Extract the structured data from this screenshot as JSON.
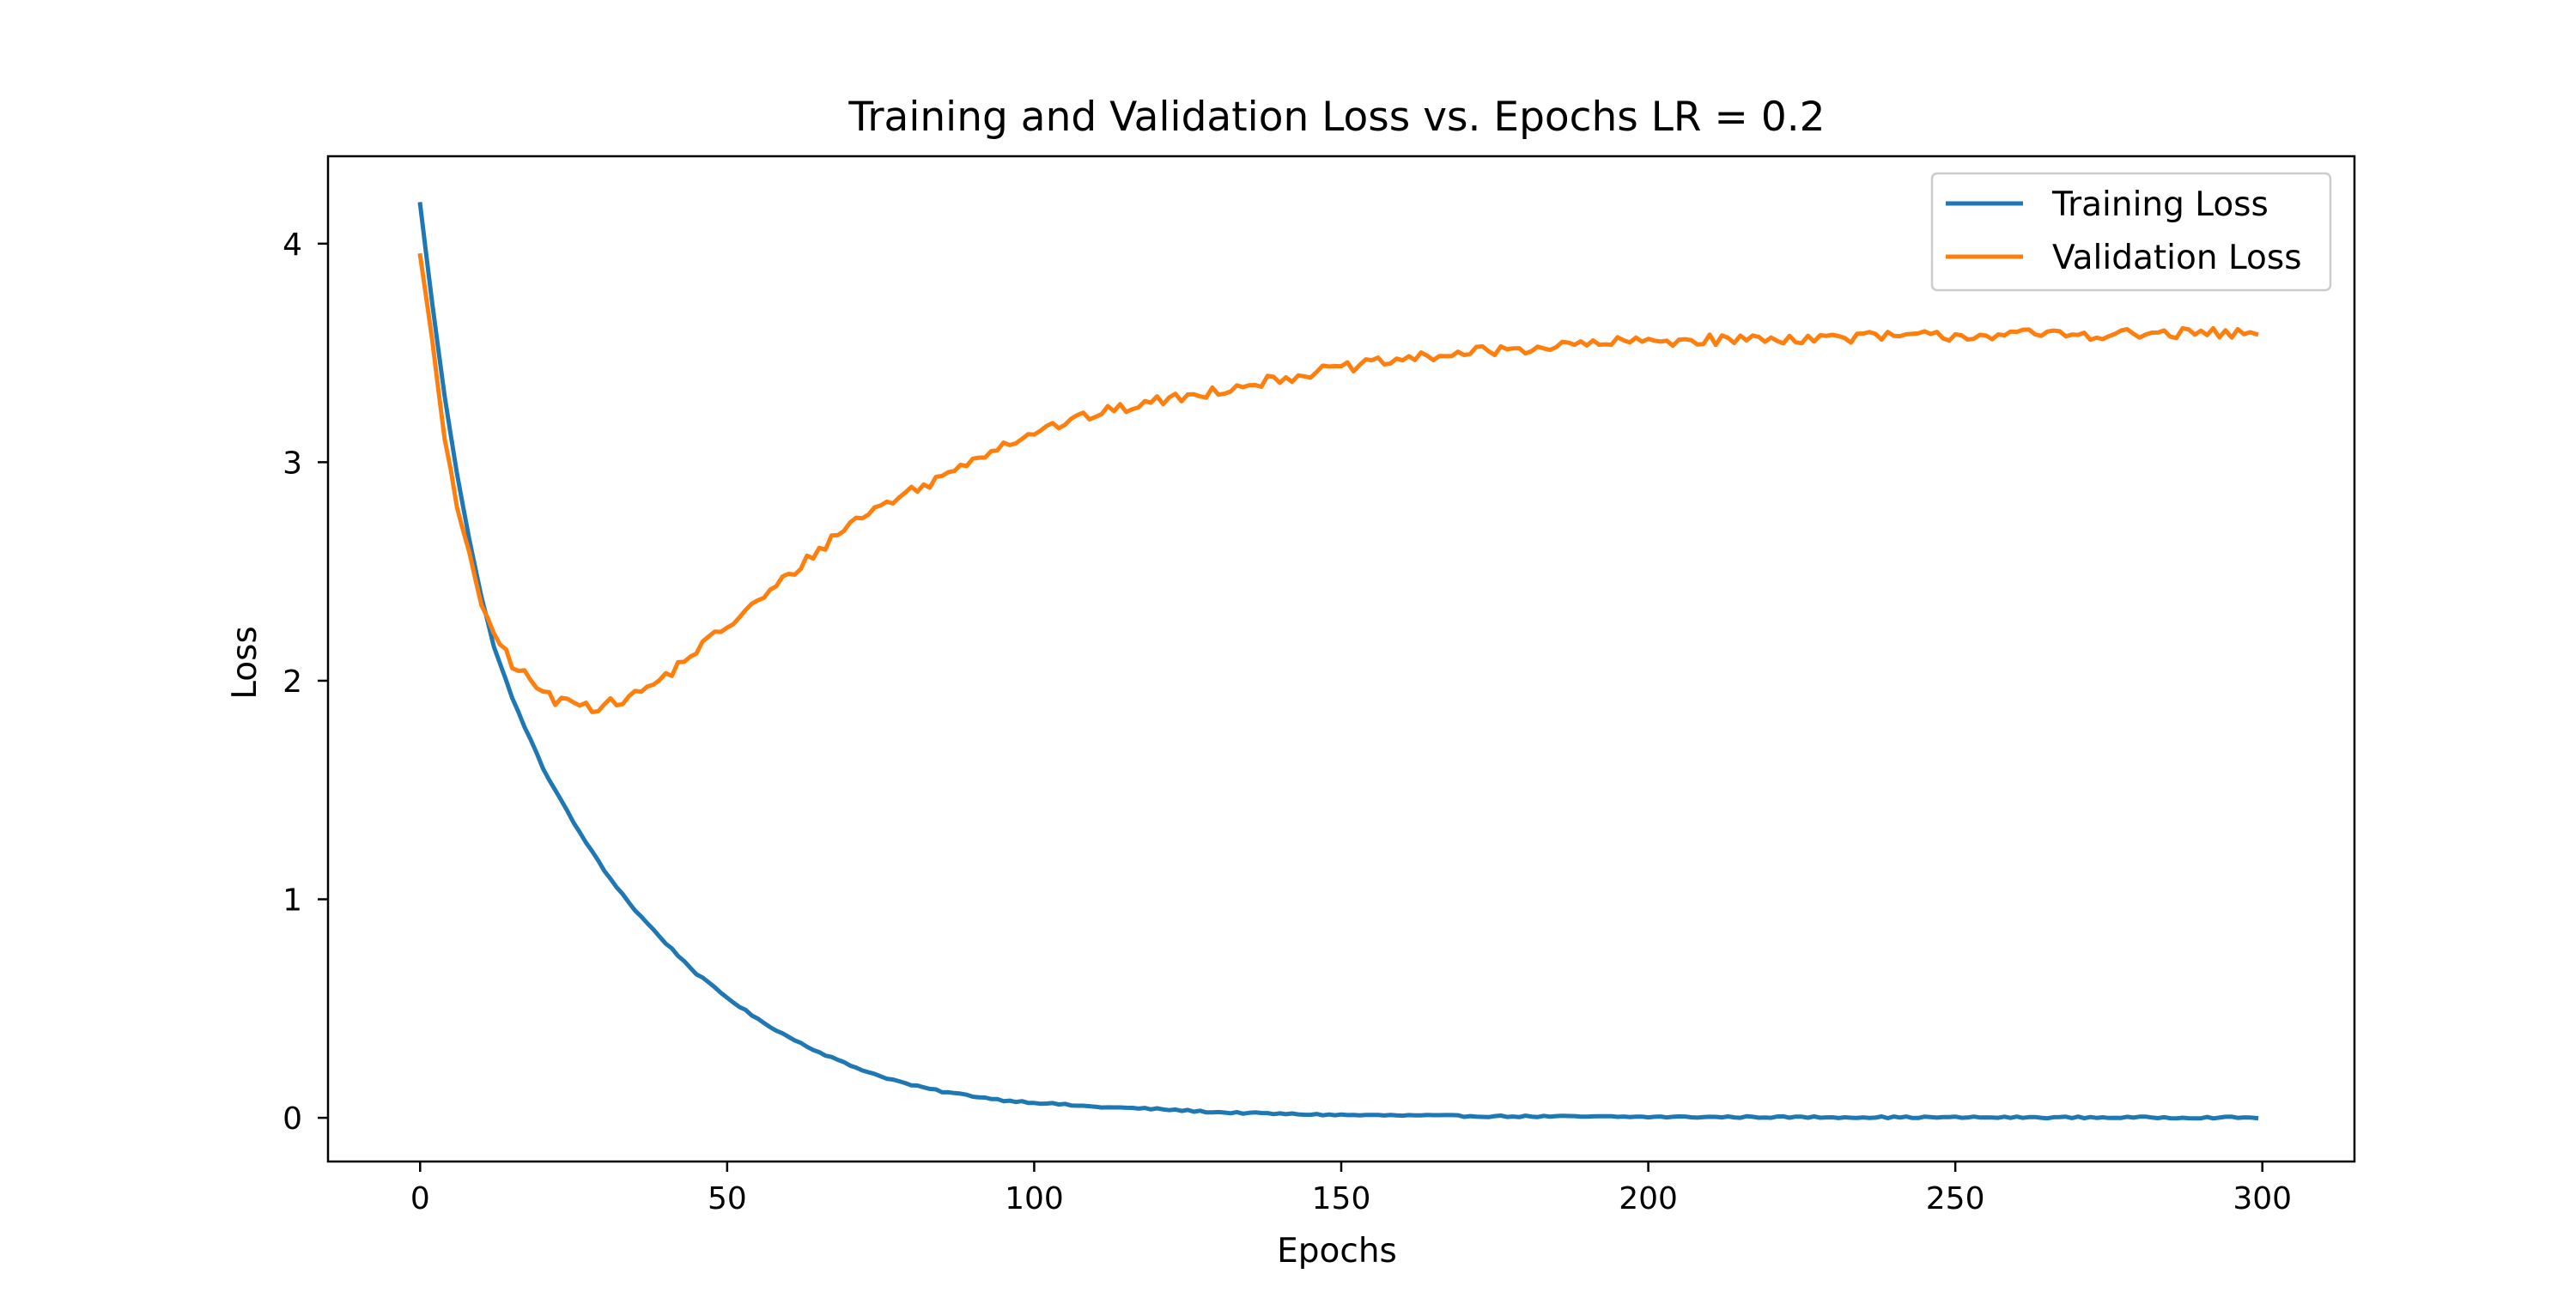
{
  "chart_data": {
    "type": "line",
    "title": "Training and Validation Loss vs. Epochs LR = 0.2",
    "xlabel": "Epochs",
    "ylabel": "Loss",
    "xlim": [
      -15,
      315
    ],
    "ylim": [
      -0.2,
      4.4
    ],
    "xticks": [
      0,
      50,
      100,
      150,
      200,
      250,
      300
    ],
    "yticks": [
      0,
      1,
      2,
      3,
      4
    ],
    "grid": false,
    "legend_position": "top-right",
    "x": {
      "start": 0,
      "end": 299,
      "step": 1
    },
    "series": [
      {
        "name": "Training Loss",
        "color": "#1f77b4",
        "keypoints": [
          [
            0,
            4.18
          ],
          [
            2,
            3.72
          ],
          [
            4,
            3.3
          ],
          [
            6,
            2.95
          ],
          [
            8,
            2.65
          ],
          [
            10,
            2.38
          ],
          [
            12,
            2.16
          ],
          [
            15,
            1.92
          ],
          [
            20,
            1.6
          ],
          [
            25,
            1.35
          ],
          [
            30,
            1.13
          ],
          [
            35,
            0.95
          ],
          [
            40,
            0.8
          ],
          [
            45,
            0.66
          ],
          [
            50,
            0.55
          ],
          [
            55,
            0.45
          ],
          [
            60,
            0.37
          ],
          [
            65,
            0.3
          ],
          [
            70,
            0.24
          ],
          [
            75,
            0.19
          ],
          [
            80,
            0.15
          ],
          [
            85,
            0.12
          ],
          [
            90,
            0.1
          ],
          [
            95,
            0.08
          ],
          [
            100,
            0.07
          ],
          [
            110,
            0.05
          ],
          [
            120,
            0.04
          ],
          [
            130,
            0.025
          ],
          [
            140,
            0.018
          ],
          [
            150,
            0.013
          ],
          [
            175,
            0.007
          ],
          [
            200,
            0.004
          ],
          [
            250,
            0.002
          ],
          [
            299,
            0.001
          ]
        ],
        "noise": 0.004
      },
      {
        "name": "Validation Loss",
        "color": "#ff7f0e",
        "keypoints": [
          [
            0,
            3.95
          ],
          [
            2,
            3.55
          ],
          [
            4,
            3.1
          ],
          [
            6,
            2.8
          ],
          [
            8,
            2.6
          ],
          [
            10,
            2.32
          ],
          [
            12,
            2.22
          ],
          [
            15,
            2.08
          ],
          [
            18,
            2.0
          ],
          [
            20,
            1.95
          ],
          [
            22,
            1.9
          ],
          [
            25,
            1.92
          ],
          [
            28,
            1.88
          ],
          [
            32,
            1.9
          ],
          [
            36,
            1.95
          ],
          [
            40,
            2.02
          ],
          [
            45,
            2.14
          ],
          [
            50,
            2.25
          ],
          [
            55,
            2.36
          ],
          [
            60,
            2.48
          ],
          [
            65,
            2.6
          ],
          [
            70,
            2.72
          ],
          [
            75,
            2.8
          ],
          [
            80,
            2.87
          ],
          [
            85,
            2.93
          ],
          [
            90,
            3.02
          ],
          [
            95,
            3.08
          ],
          [
            100,
            3.14
          ],
          [
            105,
            3.18
          ],
          [
            110,
            3.22
          ],
          [
            115,
            3.25
          ],
          [
            120,
            3.28
          ],
          [
            125,
            3.3
          ],
          [
            130,
            3.33
          ],
          [
            135,
            3.36
          ],
          [
            140,
            3.38
          ],
          [
            145,
            3.41
          ],
          [
            150,
            3.43
          ],
          [
            160,
            3.47
          ],
          [
            170,
            3.5
          ],
          [
            180,
            3.52
          ],
          [
            190,
            3.54
          ],
          [
            200,
            3.555
          ],
          [
            210,
            3.56
          ],
          [
            220,
            3.565
          ],
          [
            230,
            3.57
          ],
          [
            240,
            3.575
          ],
          [
            250,
            3.58
          ],
          [
            260,
            3.585
          ],
          [
            270,
            3.585
          ],
          [
            280,
            3.585
          ],
          [
            290,
            3.59
          ],
          [
            299,
            3.585
          ]
        ],
        "noise": 0.025
      }
    ]
  }
}
